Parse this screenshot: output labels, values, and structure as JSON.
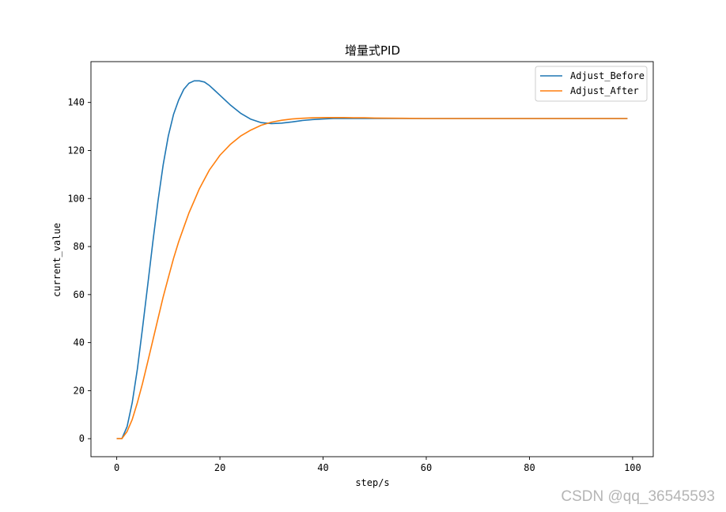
{
  "chart_data": {
    "type": "line",
    "title": "增量式PID",
    "xlabel": "step/s",
    "ylabel": "current_value",
    "xlim": [
      -5,
      104
    ],
    "ylim": [
      -7.5,
      157
    ],
    "xticks": [
      0,
      20,
      40,
      60,
      80,
      100
    ],
    "yticks": [
      0,
      20,
      40,
      60,
      80,
      100,
      120,
      140
    ],
    "grid": false,
    "legend_position": "top-right",
    "series": [
      {
        "name": "Adjust_Before",
        "color": "#1f77b4",
        "x": [
          0,
          1,
          2,
          3,
          4,
          5,
          6,
          7,
          8,
          9,
          10,
          11,
          12,
          13,
          14,
          15,
          16,
          17,
          18,
          19,
          20,
          22,
          24,
          26,
          28,
          30,
          32,
          34,
          36,
          38,
          40,
          42,
          44,
          46,
          48,
          50,
          52,
          55,
          60,
          65,
          70,
          75,
          80,
          85,
          90,
          95,
          99
        ],
        "values": [
          0,
          0,
          5,
          15,
          29,
          46,
          64,
          82,
          99,
          114,
          126,
          135,
          141,
          145.5,
          148,
          149,
          149,
          148.5,
          147,
          145,
          143,
          139,
          135.5,
          133,
          131.6,
          131.2,
          131.4,
          131.9,
          132.5,
          132.9,
          133.1,
          133.3,
          133.3,
          133.3,
          133.3,
          133.3,
          133.3,
          133.3,
          133.3,
          133.3,
          133.3,
          133.3,
          133.3,
          133.3,
          133.3,
          133.3,
          133.3
        ]
      },
      {
        "name": "Adjust_After",
        "color": "#ff7f0e",
        "x": [
          0,
          1,
          2,
          3,
          4,
          5,
          6,
          7,
          8,
          9,
          10,
          11,
          12,
          13,
          14,
          15,
          16,
          17,
          18,
          19,
          20,
          22,
          24,
          26,
          28,
          30,
          32,
          34,
          36,
          38,
          40,
          42,
          44,
          46,
          48,
          50,
          55,
          60,
          65,
          70,
          75,
          80,
          85,
          90,
          95,
          99
        ],
        "values": [
          0,
          0,
          3,
          8,
          15,
          23,
          32,
          41,
          50,
          59,
          67,
          75,
          82,
          88,
          94,
          99,
          104,
          108,
          112,
          115,
          118,
          122.5,
          126,
          128.5,
          130.5,
          131.8,
          132.6,
          133.1,
          133.4,
          133.6,
          133.7,
          133.7,
          133.7,
          133.6,
          133.6,
          133.5,
          133.4,
          133.3,
          133.3,
          133.3,
          133.3,
          133.3,
          133.3,
          133.3,
          133.3,
          133.3
        ]
      }
    ]
  },
  "watermark": "CSDN @qq_36545593"
}
